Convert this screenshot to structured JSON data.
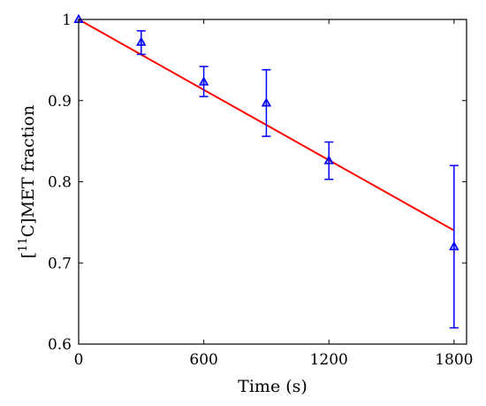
{
  "chart_data": {
    "type": "scatter",
    "xlabel": "Time (s)",
    "ylabel_main": "C]MET fraction",
    "ylabel_superscript": "11",
    "ylabel_prefix": "[",
    "xlim": [
      0,
      1860
    ],
    "ylim": [
      0.6,
      1.0
    ],
    "x_ticks": [
      0,
      600,
      1200,
      1800
    ],
    "x_tick_labels": [
      "0",
      "600",
      "1200",
      "1800"
    ],
    "y_ticks": [
      0.6,
      0.7,
      0.8,
      0.9,
      1.0
    ],
    "y_tick_labels": [
      "0.6",
      "0.7",
      "0.8",
      "0.9",
      "1"
    ],
    "grid": false,
    "series": [
      {
        "type": "scatter",
        "color": "#0000ff",
        "marker": "triangle",
        "points": [
          {
            "x": 0,
            "y": 1.0,
            "err_low": 0.0,
            "err_high": 0.0
          },
          {
            "x": 300,
            "y": 0.972,
            "err_low": 0.015,
            "err_high": 0.014
          },
          {
            "x": 600,
            "y": 0.923,
            "err_low": 0.018,
            "err_high": 0.019
          },
          {
            "x": 900,
            "y": 0.897,
            "err_low": 0.041,
            "err_high": 0.041
          },
          {
            "x": 1200,
            "y": 0.826,
            "err_low": 0.023,
            "err_high": 0.023
          },
          {
            "x": 1800,
            "y": 0.72,
            "err_low": 0.1,
            "err_high": 0.1
          }
        ]
      },
      {
        "type": "line",
        "color": "#ff0000",
        "x": [
          0,
          1800
        ],
        "y": [
          1.0,
          0.74
        ]
      }
    ]
  }
}
